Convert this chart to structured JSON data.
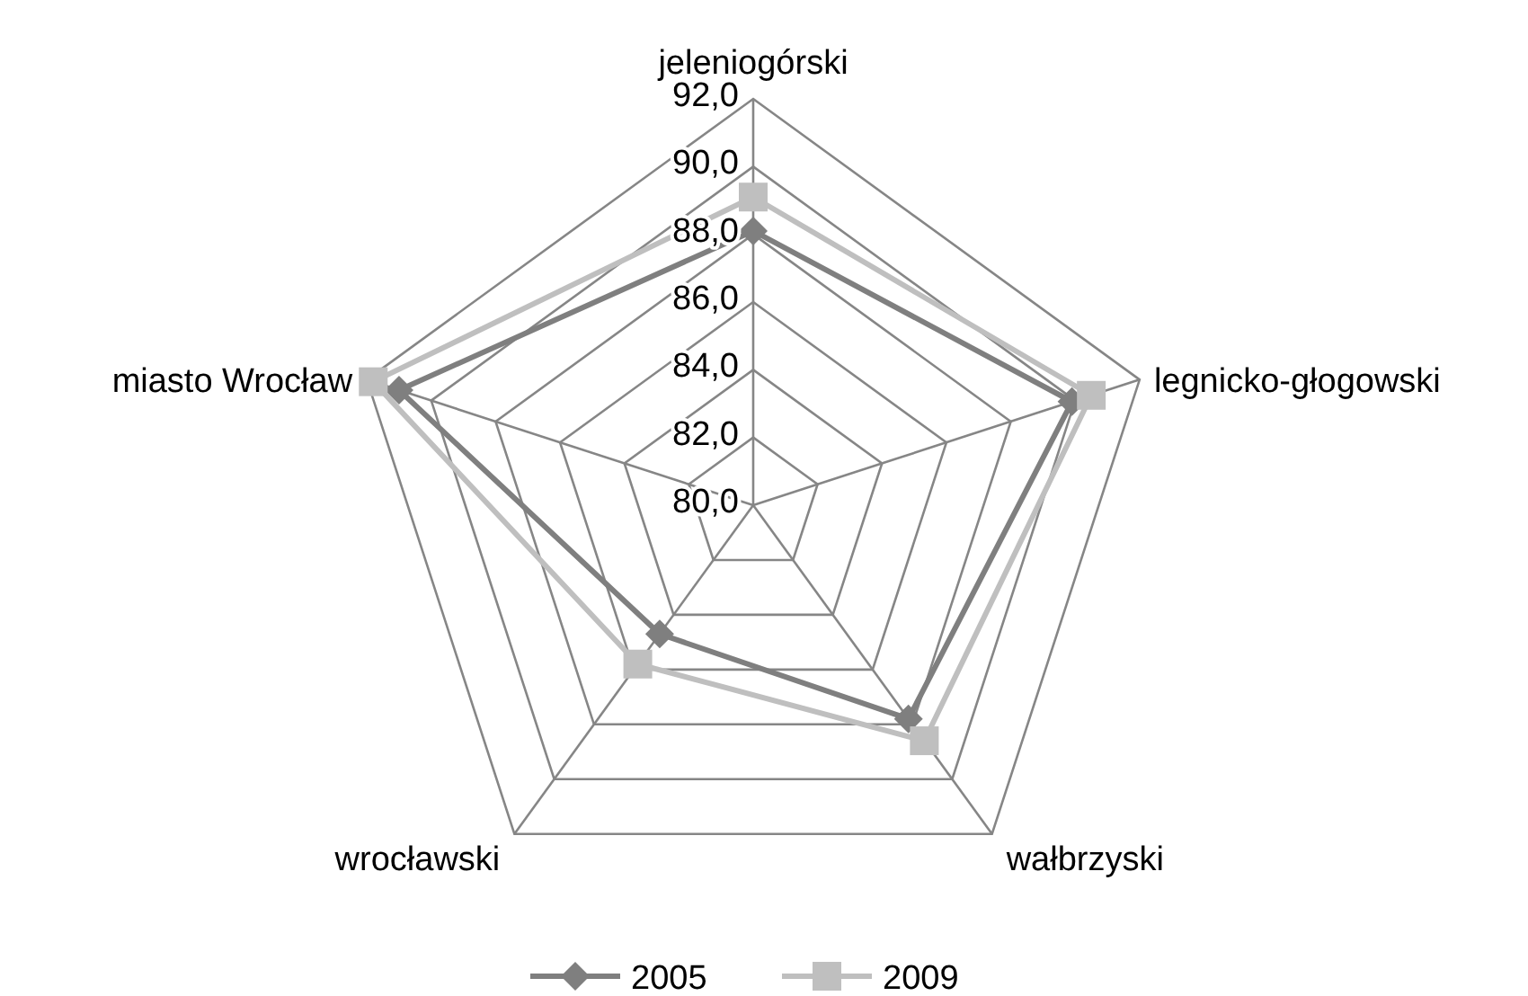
{
  "chart_data": {
    "type": "radar",
    "categories": [
      "jeleniogórski",
      "legnicko-głogowski",
      "wałbrzyski",
      "wrocławski",
      "miasto Wrocław"
    ],
    "series": [
      {
        "name": "2005",
        "color": "#7f7f7f",
        "marker": "diamond",
        "values": [
          88.1,
          89.9,
          87.8,
          84.7,
          91.0
        ]
      },
      {
        "name": "2009",
        "color": "#bfbfbf",
        "marker": "square",
        "values": [
          89.1,
          90.5,
          88.6,
          85.8,
          91.8
        ]
      }
    ],
    "ylim": [
      80,
      92
    ],
    "yticks": [
      {
        "value": 80,
        "label": "80,0"
      },
      {
        "value": 82,
        "label": "82,0"
      },
      {
        "value": 84,
        "label": "84,0"
      },
      {
        "value": 86,
        "label": "86,0"
      },
      {
        "value": 88,
        "label": "88,0"
      },
      {
        "value": 90,
        "label": "90,0"
      },
      {
        "value": 92,
        "label": "92,0"
      }
    ],
    "grid": true,
    "legend": "bottom"
  }
}
